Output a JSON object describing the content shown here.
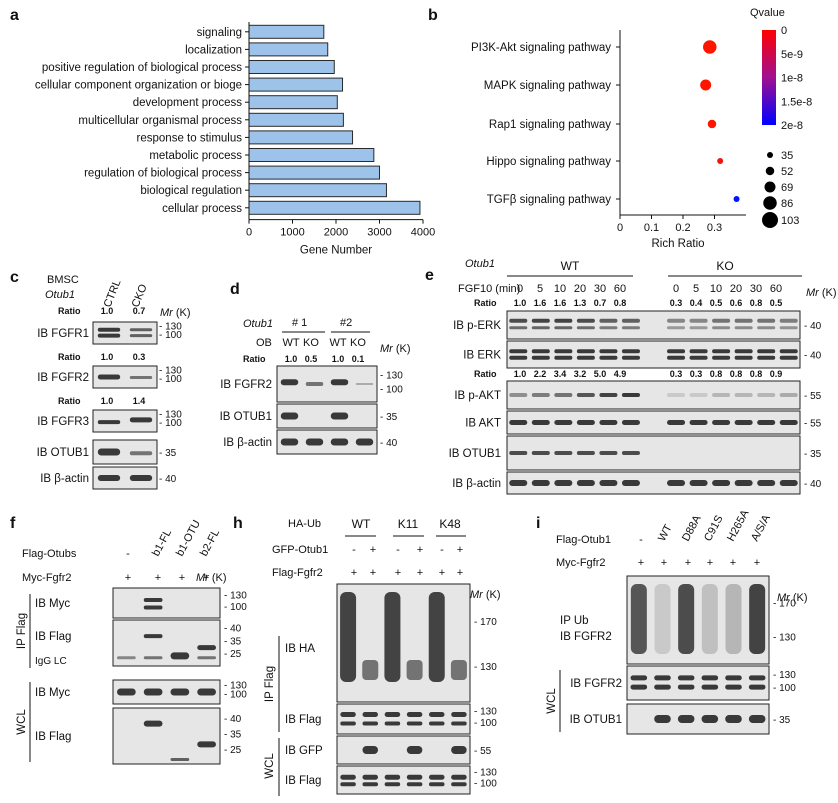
{
  "colors": {
    "bar_fill": "#9dc3ea",
    "bar_stroke": "#2a2a2a",
    "blot_band": "#262626",
    "blot_bg": "#e6e6e6"
  },
  "panels": {
    "a": {
      "letter": "a",
      "chart_data": {
        "type": "bar",
        "orientation": "horizontal",
        "categories": [
          "signaling",
          "localization",
          "positive regulation of biological process",
          "cellular component organization or bioge",
          "development process",
          "multicellular organismal process",
          "response to stimulus",
          "metabolic process",
          "regulation of biological process",
          "biological regulation",
          "cellular process"
        ],
        "values": [
          1720,
          1810,
          1960,
          2150,
          2030,
          2170,
          2380,
          2870,
          3000,
          3160,
          3930
        ],
        "xlabel": "Gene Number",
        "xlim": [
          0,
          4000
        ],
        "xticks": [
          "0",
          "1000",
          "2000",
          "3000",
          "4000"
        ],
        "grid": false
      }
    },
    "b": {
      "letter": "b",
      "chart_data": {
        "type": "scatter",
        "categories": [
          "PI3K-Akt signaling pathway",
          "MAPK signaling pathway",
          "Rap1 signaling pathway",
          "Hippo signaling pathway",
          "TGFβ signaling pathway"
        ],
        "x": [
          0.285,
          0.272,
          0.292,
          0.318,
          0.37
        ],
        "qvalue": [
          0.0,
          0.0,
          0.0,
          1e-09,
          2e-08
        ],
        "size": [
          86,
          69,
          52,
          35,
          35
        ],
        "xlabel": "Rich Ratio",
        "xlim": [
          0,
          0.4
        ],
        "xticks": [
          "0",
          "0.1",
          "0.2",
          "0.3"
        ],
        "color_legend": {
          "title": "Qvalue",
          "ticks": [
            "0",
            "5e-9",
            "1e-8",
            "1.5e-8",
            "2e-8"
          ],
          "low_color": "#ff0000",
          "high_color": "#0000ff"
        },
        "size_legend": [
          "35",
          "52",
          "69",
          "86",
          "103"
        ]
      }
    },
    "c": {
      "letter": "c",
      "header": {
        "line1": "BMSC",
        "line2": "Otub1",
        "lanes": [
          "CTRL",
          "CKO"
        ]
      },
      "rows": [
        {
          "label": "IB FGFR1",
          "ratio_label": "Ratio",
          "ratios": [
            "1.0",
            "0.7"
          ],
          "markers": [
            "130",
            "100"
          ]
        },
        {
          "label": "IB FGFR2",
          "ratio_label": "Ratio",
          "ratios": [
            "1.0",
            "0.3"
          ],
          "markers": [
            "130",
            "100"
          ]
        },
        {
          "label": "IB FGFR3",
          "ratio_label": "Ratio",
          "ratios": [
            "1.0",
            "1.4"
          ],
          "markers": [
            "130",
            "100"
          ]
        },
        {
          "label": "IB OTUB1",
          "markers": [
            "35"
          ]
        },
        {
          "label": "IB β-actin",
          "markers": [
            "40"
          ]
        }
      ]
    },
    "d": {
      "letter": "d",
      "header": {
        "gene": "Otub1",
        "groups": [
          "# 1",
          "#2"
        ],
        "ob": "OB",
        "lanes": [
          "WT",
          "KO",
          "WT",
          "KO"
        ],
        "ratio_label": "Ratio",
        "ratios": [
          "1.0",
          "0.5",
          "1.0",
          "0.1"
        ]
      },
      "rows": [
        {
          "label": "IB FGFR2",
          "markers": [
            "130",
            "100"
          ]
        },
        {
          "label": "IB OTUB1",
          "markers": [
            "35"
          ]
        },
        {
          "label": "IB β-actin",
          "markers": [
            "40"
          ]
        }
      ]
    },
    "e": {
      "letter": "e",
      "header": {
        "gene": "Otub1",
        "groups": [
          "WT",
          "KO"
        ],
        "fgf_label": "FGF10 (min)",
        "times": [
          "0",
          "5",
          "10",
          "20",
          "30",
          "60",
          "0",
          "5",
          "10",
          "20",
          "30",
          "60"
        ]
      },
      "ratio_label": "Ratio",
      "ratios_perk": [
        "1.0",
        "1.6",
        "1.6",
        "1.3",
        "0.7",
        "0.8",
        "0.3",
        "0.4",
        "0.5",
        "0.6",
        "0.8",
        "0.5"
      ],
      "ratios_pakt": [
        "1.0",
        "2.2",
        "3.4",
        "3.2",
        "5.0",
        "4.9",
        "0.3",
        "0.3",
        "0.8",
        "0.8",
        "0.8",
        "0.9"
      ],
      "rows": [
        {
          "label": "IB p-ERK",
          "marker": "40"
        },
        {
          "label": "IB ERK",
          "marker": "40"
        },
        {
          "label": "IB p-AKT",
          "marker": "55"
        },
        {
          "label": "IB AKT",
          "marker": "55"
        },
        {
          "label": "IB OTUB1",
          "marker": "35"
        },
        {
          "label": "IB β-actin",
          "marker": "40"
        }
      ]
    },
    "f": {
      "letter": "f",
      "header": {
        "row1_label": "Flag-Otubs",
        "row1_values": [
          "-",
          "b1-FL",
          "b1-OTU",
          "b2-FL"
        ],
        "row2_label": "Myc-Fgfr2",
        "row2_values": [
          "+",
          "+",
          "+",
          "+"
        ]
      },
      "ip_label": "IP Flag",
      "wcl_label": "WCL",
      "igg_label": "IgG LC",
      "rows": [
        {
          "label": "IB Myc",
          "markers": [
            "130",
            "100"
          ]
        },
        {
          "label": "IB Flag",
          "markers": [
            "40",
            "35",
            "25"
          ]
        },
        {
          "label": "IB Myc",
          "markers": [
            "130",
            "100"
          ]
        },
        {
          "label": "IB Flag",
          "markers": [
            "40",
            "35",
            "25"
          ]
        }
      ]
    },
    "h": {
      "letter": "h",
      "header": {
        "ha_label": "HA-Ub",
        "groups": [
          "WT",
          "K11",
          "K48"
        ],
        "gfp_label": "GFP-Otub1",
        "gfp_values": [
          "-",
          "+",
          "-",
          "+",
          "-",
          "+"
        ],
        "fgfr_label": "Flag-Fgfr2",
        "fgfr_values": [
          "+",
          "+",
          "+",
          "+",
          "+",
          "+"
        ]
      },
      "ip_label": "IP Flag",
      "wcl_label": "WCL",
      "rows": [
        {
          "label": "IB HA",
          "markers": [
            "170",
            "130"
          ]
        },
        {
          "label": "IB Flag",
          "markers": [
            "130",
            "100"
          ]
        },
        {
          "label": "IB GFP",
          "markers": [
            "55"
          ]
        },
        {
          "label": "IB Flag",
          "markers": [
            "130",
            "100"
          ]
        }
      ]
    },
    "i": {
      "letter": "i",
      "header": {
        "row1_label": "Flag-Otub1",
        "row1_values": [
          "-",
          "WT",
          "D88A",
          "C91S",
          "H265A",
          "A/S/A"
        ],
        "row2_label": "Myc-Fgfr2",
        "row2_values": [
          "+",
          "+",
          "+",
          "+",
          "+",
          "+"
        ]
      },
      "wcl_label": "WCL",
      "rows": [
        {
          "label": "IP Ub\nIB FGFR2",
          "markers": [
            "170",
            "130"
          ]
        },
        {
          "label": "IB FGFR2",
          "markers": [
            "130",
            "100"
          ]
        },
        {
          "label": "IB OTUB1",
          "markers": [
            "35"
          ]
        }
      ]
    },
    "mr_label": "Mr (K)"
  }
}
